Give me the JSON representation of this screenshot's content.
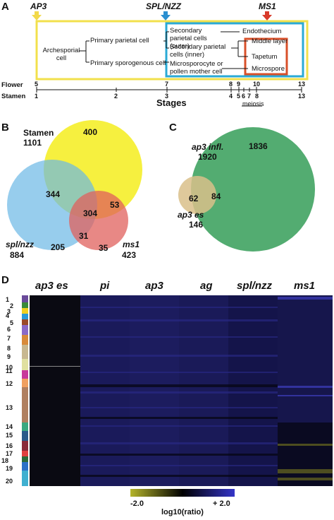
{
  "panels": {
    "A": "A",
    "B": "B",
    "C": "C",
    "D": "D"
  },
  "panelA": {
    "markers": [
      {
        "label": "AP3",
        "color": "#f2d94a"
      },
      {
        "label": "SPL/NZZ",
        "color": "#2a8fd0"
      },
      {
        "label": "MS1",
        "color": "#d83a2a"
      }
    ],
    "cells": {
      "archesporial": "Archesporial cell",
      "primary_parietal": "Primary parietal cell",
      "primary_sporogenous": "Primary sporogenous cell",
      "secondary_outer": "Secondary parietal cells (outer)",
      "secondary_inner": "Secondary parietal cells (inner)",
      "microsporocyte": "Microsporocyte or pollen mother cell",
      "endothecium": "Endothecium",
      "middle_layer": "Middle layer",
      "tapetum": "Tapetum",
      "microspore": "Microspore"
    },
    "axis": {
      "flower_label": "Flower",
      "stamen_label": "Stamen",
      "stages_label": "Stages",
      "meiosis_label": "meiosis",
      "flower_ticks": [
        "5",
        "7",
        "8",
        "9",
        "10",
        "13"
      ],
      "stamen_ticks": [
        "1",
        "2",
        "3",
        "4",
        "5",
        "6",
        "7",
        "8",
        "13"
      ]
    },
    "colors": {
      "yellow_box": "#f2e04c",
      "blue_box": "#2aaad6",
      "red_box": "#d8502a"
    }
  },
  "panelB": {
    "sets": [
      {
        "name": "Stamen",
        "total": "1101",
        "color": "#f5ee2a"
      },
      {
        "name": "spl/nzz",
        "total": "884",
        "color": "#6bb8e6"
      },
      {
        "name": "ms1",
        "total": "423",
        "color": "#e0605c"
      }
    ],
    "regions": {
      "stamen_only": "400",
      "stamen_spl": "344",
      "all": "304",
      "stamen_ms1": "53",
      "spl_only": "205",
      "spl_ms1": "31",
      "ms1_only": "35"
    }
  },
  "panelC": {
    "sets": [
      {
        "name": "ap3 infl.",
        "total": "1920",
        "color": "#4aa869"
      },
      {
        "name": "ap3 es",
        "total": "146",
        "color": "#d9c08a"
      }
    ],
    "regions": {
      "infl_only": "1836",
      "overlap": "84",
      "es_only": "62"
    }
  },
  "panelD": {
    "columns": [
      "ap3 es",
      "pi",
      "ap3",
      "ag",
      "spl/nzz",
      "ms1"
    ],
    "clusters": [
      "1",
      "2",
      "3",
      "4",
      "5",
      "6",
      "7",
      "8",
      "9",
      "10",
      "11",
      "12",
      "13",
      "14",
      "15",
      "16",
      "17",
      "18",
      "19",
      "20"
    ],
    "colorbar": {
      "min": "-2.0",
      "max": "+ 2.0",
      "label": "log10(ratio)",
      "low_color": "#b5b52a",
      "mid_color": "#000000",
      "high_color": "#3535c8"
    }
  }
}
